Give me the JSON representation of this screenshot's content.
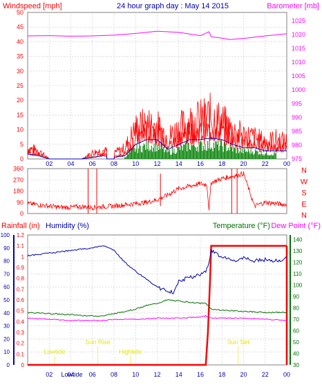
{
  "header": {
    "title": "24 hour graph day : May 14 2015",
    "left_label": "Windspeed [mph]",
    "right_label": "Barometer [mb]"
  },
  "colors": {
    "wind": "#ff0000",
    "gust": "#ff0000",
    "avg_wind": "#0000cc",
    "wind_fill": "#008000",
    "barometer": "#ff00ff",
    "direction": "#ff0000",
    "rain": "#ff0000",
    "humidity": "#0000aa",
    "temperature": "#007000",
    "dewpoint": "#ff00ff",
    "events": "#e6e600",
    "grid": "#c8c8c8",
    "axis_humidity": "#0000aa",
    "axis_temp": "#007000"
  },
  "chart_data": [
    {
      "type": "line",
      "title": "24 hour graph day : May 14 2015",
      "ylabel": "Windspeed [mph]",
      "y2label": "Barometer [mb]",
      "ylim": [
        0,
        50
      ],
      "y2lim": [
        975,
        1028
      ],
      "xticks": [
        "02",
        "04",
        "06",
        "08",
        "10",
        "12",
        "14",
        "16",
        "18",
        "20",
        "22",
        "00"
      ],
      "yticks": [
        "0",
        "5",
        "10",
        "15",
        "20",
        "25",
        "30",
        "35",
        "40",
        "45",
        "50"
      ],
      "y2ticks": [
        "975",
        "980",
        "985",
        "990",
        "995",
        "1000",
        "1005",
        "1010",
        "1015",
        "1020",
        "1025"
      ],
      "series": [
        {
          "name": "Windspeed",
          "x": [
            0,
            1,
            2,
            3,
            4,
            5,
            6,
            7,
            8,
            9,
            10,
            11,
            12,
            13,
            14,
            15,
            16,
            17,
            18,
            19,
            20,
            21,
            22,
            23,
            24
          ],
          "values": [
            3,
            2,
            0,
            0,
            0,
            0,
            1,
            2,
            1,
            2,
            9,
            12,
            12,
            6,
            9,
            12,
            12,
            13,
            12,
            9,
            7,
            7,
            5,
            5,
            5
          ]
        },
        {
          "name": "Gust",
          "x": [
            0,
            1,
            2,
            3,
            4,
            5,
            6,
            7,
            8,
            9,
            10,
            11,
            12,
            13,
            14,
            15,
            16,
            17,
            18,
            19,
            20,
            21,
            22,
            23,
            24
          ],
          "values": [
            5,
            4,
            0,
            0,
            0,
            0,
            3,
            4,
            3,
            5,
            14,
            16,
            15,
            10,
            14,
            17,
            18,
            20,
            17,
            13,
            11,
            10,
            8,
            9,
            8
          ]
        },
        {
          "name": "Barometer",
          "x": [
            0,
            2,
            4,
            6,
            8,
            10,
            12,
            14,
            16,
            16.8,
            17,
            18,
            18.7,
            20,
            22,
            24
          ],
          "values": [
            1019.5,
            1019.6,
            1019.4,
            1019.5,
            1019.8,
            1020.4,
            1021.2,
            1020.8,
            1019.6,
            1021,
            1019.2,
            1018.7,
            1018.2,
            1018.6,
            1019.5,
            1020.3
          ]
        }
      ]
    },
    {
      "type": "line",
      "ylabel": "Wind direction",
      "ylim": [
        0,
        360
      ],
      "yticks": [
        "0",
        "90",
        "180",
        "270",
        "360"
      ],
      "compass": [
        "N",
        "W",
        "S",
        "E",
        "N"
      ],
      "series": [
        {
          "name": "Direction",
          "x": [
            0,
            1,
            2,
            3,
            4,
            5,
            6,
            7,
            8,
            9,
            10,
            11,
            12,
            13,
            14,
            15,
            16,
            16.6,
            16.8,
            17,
            18,
            19,
            20,
            21,
            22,
            23,
            24
          ],
          "values": [
            80,
            70,
            60,
            50,
            50,
            55,
            50,
            55,
            60,
            70,
            80,
            90,
            110,
            150,
            200,
            220,
            240,
            230,
            40,
            250,
            280,
            300,
            320,
            60,
            90,
            80,
            70
          ]
        }
      ]
    },
    {
      "type": "line",
      "ylabel": "Rainfall [in]",
      "y2label": "Humidity [%]",
      "y3label": "Temperature [°F]",
      "y4label": "Dew Point [°F]",
      "rain_ylim": [
        0,
        1.2
      ],
      "humidity_ylim": [
        0,
        100
      ],
      "temp_ylim": [
        30,
        144
      ],
      "rain_ticks": [
        "0",
        "0.1",
        "0.2",
        "0.3",
        "0.4",
        "0.5",
        "0.6",
        "0.7",
        "0.8",
        "0.9",
        "1",
        "1.1",
        "1.2"
      ],
      "humidity_ticks": [
        "0",
        "10",
        "20",
        "30",
        "40",
        "50",
        "60",
        "70",
        "80",
        "90",
        "100"
      ],
      "temp_ticks": [
        "30",
        "40",
        "50",
        "60",
        "70",
        "80",
        "90",
        "100",
        "110",
        "120",
        "130",
        "140"
      ],
      "xticks": [
        "02",
        "04",
        "06",
        "08",
        "10",
        "12",
        "14",
        "16",
        "18",
        "20",
        "22",
        "00"
      ],
      "annotations": [
        "Lowtide",
        "Sun Rise",
        "Hightide",
        "Sun Set"
      ],
      "annotation_x": [
        2.5,
        6.5,
        9.5,
        19.5
      ],
      "series": [
        {
          "name": "Rainfall",
          "x": [
            0,
            16.5,
            16.7,
            16.9,
            17,
            24
          ],
          "values": [
            0,
            0,
            0.3,
            0.8,
            1.1,
            1.1
          ]
        },
        {
          "name": "Humidity",
          "x": [
            0,
            2,
            4,
            6,
            7,
            8,
            9,
            10,
            11,
            12,
            13,
            13.5,
            14,
            15,
            16,
            16.5,
            16.8,
            17,
            18,
            19,
            20,
            21,
            22,
            23,
            24
          ],
          "values": [
            84,
            86,
            88,
            90,
            92,
            88,
            79,
            72,
            66,
            60,
            56,
            56,
            65,
            67,
            70,
            72,
            80,
            88,
            83,
            80,
            82,
            80,
            81,
            80,
            82
          ]
        },
        {
          "name": "Temperature",
          "x": [
            0,
            2,
            4,
            6,
            7,
            8,
            9,
            10,
            11,
            12,
            13,
            14,
            15,
            16,
            16.5,
            17,
            18,
            20,
            22,
            24
          ],
          "values": [
            76,
            75,
            74,
            73,
            73,
            75,
            77,
            79,
            82,
            84,
            87,
            86,
            85,
            84,
            84,
            79,
            78,
            77,
            76,
            76
          ]
        },
        {
          "name": "Dew Point",
          "x": [
            0,
            2,
            4,
            6,
            7,
            8,
            10,
            12,
            14,
            16,
            16.5,
            17,
            18,
            20,
            22,
            24
          ],
          "values": [
            71,
            70,
            69,
            69,
            69,
            70,
            70,
            71,
            71,
            72,
            73,
            71,
            71,
            71,
            70,
            69
          ]
        }
      ]
    }
  ],
  "wind_panel": {
    "right_compass": [
      "N",
      "W",
      "S",
      "E",
      "N"
    ]
  },
  "bottom_panel": {
    "rain_label": "Rainfall (in)",
    "humidity_label": "Humidity (%)",
    "temp_label": "Temperature (°F)",
    "dewpoint_label": "Dew Point (°F)",
    "bottom_extra_label": "Lowtide"
  }
}
